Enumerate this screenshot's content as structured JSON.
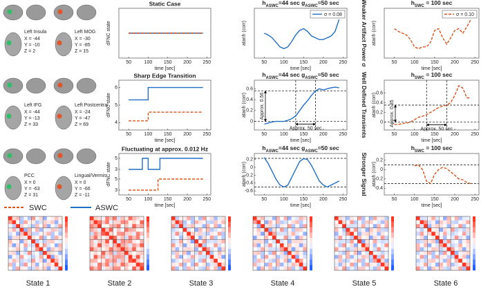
{
  "brain_regions": [
    {
      "name": "Left Insula",
      "coords": [
        "X = -44",
        "Y = -10",
        "Z =   2"
      ]
    },
    {
      "name": "Left MOG",
      "coords": [
        "X = -30",
        "Y = -85",
        "Z = 15"
      ]
    },
    {
      "name": "Left IFG",
      "coords": [
        "X = -44",
        "Y = -13",
        "Z = 33"
      ]
    },
    {
      "name": "Left Postcentral",
      "coords": [
        "X = -24",
        "Y = -47",
        "Z = 69"
      ]
    },
    {
      "name": "PCC",
      "coords": [
        "X = 0",
        "Y = -63",
        "Z = 31"
      ]
    },
    {
      "name": "Lingual/Vermis",
      "coords": [
        "X = 0",
        "Y = -66",
        "Z = -11"
      ]
    }
  ],
  "row_labels": [
    "Weaker Artifact Power σ",
    "Well Defined Transients",
    "Stronger Signal"
  ],
  "legend": [
    {
      "name": "SWC",
      "color": "#d95319",
      "dash": "dashed"
    },
    {
      "name": "ASWC",
      "color": "#1f6ec4",
      "dash": "solid"
    }
  ],
  "states": [
    "State 1",
    "State 2",
    "State 3",
    "State 4",
    "State 5",
    "State 6"
  ],
  "chart_data": [
    {
      "type": "line",
      "title": "Static Case",
      "xlabel": "time [sec]",
      "ylabel": "dFNC state",
      "xlim": [
        25,
        260
      ],
      "xticks": [
        50,
        100,
        150,
        200,
        250
      ],
      "ylim": [
        1,
        3
      ],
      "series": [
        {
          "color": "#1f6ec4",
          "dash": "solid",
          "x": [
            50,
            240
          ],
          "values": [
            2,
            2
          ]
        },
        {
          "color": "#d95319",
          "dash": "dashed",
          "x": [
            50,
            240
          ],
          "values": [
            2,
            2
          ]
        }
      ]
    },
    {
      "type": "line",
      "title_parts": [
        {
          "text": "h"
        },
        {
          "text": "ASWC",
          "sub": true
        },
        {
          "text": "=44 sec  g"
        },
        {
          "text": "ASWC",
          "sub": true
        },
        {
          "text": "=50 sec"
        }
      ],
      "xlabel": "time [sec]",
      "ylabel": "atanh (corr)",
      "xlim": [
        25,
        260
      ],
      "xticks": [
        50,
        100,
        150,
        200,
        250
      ],
      "ylim": [
        0.7,
        1.2
      ],
      "legend": "upper right",
      "series": [
        {
          "name": "σ = 0.08",
          "color": "#1f6ec4",
          "dash": "solid",
          "x": [
            50,
            60,
            70,
            80,
            90,
            100,
            110,
            120,
            130,
            140,
            150,
            160,
            170,
            180,
            190,
            200,
            210,
            220,
            230,
            240
          ],
          "values": [
            0.95,
            0.93,
            0.9,
            0.85,
            0.8,
            0.78,
            0.8,
            0.86,
            0.93,
            0.98,
            1.0,
            0.97,
            0.92,
            0.9,
            0.88,
            0.88,
            0.9,
            0.92,
            0.97,
            1.1
          ]
        }
      ]
    },
    {
      "type": "line",
      "title_parts": [
        {
          "text": "h"
        },
        {
          "text": "SWC",
          "sub": true
        },
        {
          "text": " = 100 sec"
        }
      ],
      "xlabel": "time [sec]",
      "ylabel": "atanh (corr)",
      "xlim": [
        25,
        260
      ],
      "xticks": [
        50,
        100,
        150,
        200,
        250
      ],
      "ylim": [
        0.7,
        1.2
      ],
      "legend": "upper right",
      "series": [
        {
          "name": "σ = 0.10",
          "color": "#d95319",
          "dash": "dashed",
          "x": [
            50,
            60,
            70,
            80,
            90,
            100,
            110,
            120,
            130,
            140,
            150,
            160,
            170,
            180,
            190,
            200,
            210,
            220,
            230,
            240
          ],
          "values": [
            1.0,
            0.97,
            0.95,
            0.93,
            0.88,
            0.8,
            0.78,
            0.8,
            0.8,
            0.85,
            0.98,
            1.0,
            0.9,
            0.83,
            0.9,
            0.98,
            1.0,
            0.95,
            1.02,
            1.1
          ]
        }
      ]
    },
    {
      "type": "line",
      "title": "Sharp Edge Transition",
      "xlabel": "time [sec]",
      "ylabel": "dFNC state",
      "xlim": [
        25,
        260
      ],
      "xticks": [
        50,
        100,
        150,
        200,
        250
      ],
      "ylim": [
        3.7,
        6.3
      ],
      "yticks": [
        4,
        5,
        6
      ],
      "series": [
        {
          "color": "#1f6ec4",
          "dash": "solid",
          "x": [
            50,
            100,
            100,
            240
          ],
          "values": [
            5.3,
            5.3,
            6,
            6
          ]
        },
        {
          "color": "#d95319",
          "dash": "dashed",
          "x": [
            50,
            100,
            100,
            240
          ],
          "values": [
            4.1,
            4.1,
            4.6,
            4.6
          ]
        }
      ]
    },
    {
      "type": "line",
      "title_parts": [
        {
          "text": "h"
        },
        {
          "text": "ASWC",
          "sub": true
        },
        {
          "text": "=44 sec  g"
        },
        {
          "text": "ASWC",
          "sub": true
        },
        {
          "text": "=50 sec"
        }
      ],
      "xlabel": "time [sec]",
      "ylabel": "atanh (corr)",
      "xlim": [
        25,
        260
      ],
      "xticks": [
        50,
        100,
        150,
        200,
        250
      ],
      "ylim": [
        -0.12,
        0.72
      ],
      "yticks": [
        0,
        0.2,
        0.4,
        0.6
      ],
      "guides": {
        "x": [
          130,
          180
        ],
        "y": [
          0,
          0.56
        ]
      },
      "annotations": [
        {
          "text": "Approx. 0.56",
          "orient": "vertical"
        },
        {
          "text": "Approx. 50 sec",
          "orient": "horizontal"
        }
      ],
      "series": [
        {
          "color": "#1f6ec4",
          "dash": "solid",
          "x": [
            50,
            60,
            70,
            80,
            90,
            100,
            110,
            120,
            130,
            140,
            150,
            160,
            170,
            180,
            190,
            200,
            210,
            220,
            230,
            240
          ],
          "values": [
            -0.05,
            -0.03,
            -0.01,
            0.0,
            0.0,
            0.0,
            0.02,
            0.05,
            0.1,
            0.2,
            0.3,
            0.38,
            0.48,
            0.56,
            0.6,
            0.58,
            0.6,
            0.62,
            0.63,
            0.62
          ]
        }
      ]
    },
    {
      "type": "line",
      "title_parts": [
        {
          "text": "h"
        },
        {
          "text": "SWC",
          "sub": true
        },
        {
          "text": " = 100 sec"
        }
      ],
      "xlabel": "time [sec]",
      "ylabel": "atanh (corr)",
      "xlim": [
        25,
        260
      ],
      "xticks": [
        50,
        100,
        150,
        200,
        250
      ],
      "ylim": [
        -0.12,
        0.82
      ],
      "yticks": [
        0,
        0.2,
        0.4,
        0.6
      ],
      "guides": {
        "x": [
          130,
          180
        ],
        "y": [
          0,
          0.35
        ]
      },
      "annotations": [
        {
          "text": "Approx. 0.35",
          "orient": "vertical"
        },
        {
          "text": "Approx. 50 sec",
          "orient": "horizontal"
        }
      ],
      "series": [
        {
          "color": "#d95319",
          "dash": "dashed",
          "x": [
            50,
            60,
            70,
            80,
            90,
            100,
            110,
            120,
            130,
            140,
            150,
            160,
            170,
            180,
            190,
            200,
            210,
            220,
            230,
            240
          ],
          "values": [
            -0.05,
            -0.05,
            -0.03,
            -0.02,
            0.0,
            0.05,
            0.1,
            0.12,
            0.15,
            0.2,
            0.25,
            0.3,
            0.33,
            0.35,
            0.4,
            0.55,
            0.75,
            0.7,
            0.5,
            0.5
          ]
        }
      ]
    },
    {
      "type": "line",
      "title": "Fluctuating at approx. 0.012 Hz",
      "xlabel": "time [sec]",
      "ylabel": "dFNC state",
      "xlim": [
        25,
        260
      ],
      "xticks": [
        50,
        100,
        150,
        200,
        250
      ],
      "panels": [
        {
          "ylim": [
            2.5,
            5.5
          ],
          "yticks": [
            3,
            5
          ],
          "series": [
            {
              "color": "#1f6ec4",
              "dash": "solid",
              "x": [
                50,
                85,
                85,
                100,
                100,
                130,
                130,
                240
              ],
              "values": [
                3,
                3,
                5,
                5,
                3,
                3,
                5,
                5
              ]
            }
          ]
        },
        {
          "ylim": [
            2.5,
            5.5
          ],
          "yticks": [
            3,
            5
          ],
          "series": [
            {
              "color": "#d95319",
              "dash": "dashed",
              "x": [
                50,
                125,
                125,
                240
              ],
              "values": [
                3,
                3,
                5,
                5
              ]
            }
          ]
        }
      ]
    },
    {
      "type": "line",
      "title_parts": [
        {
          "text": "h"
        },
        {
          "text": "ASWC",
          "sub": true
        },
        {
          "text": "=44 sec  g"
        },
        {
          "text": "ASWC",
          "sub": true
        },
        {
          "text": "=50 sec"
        }
      ],
      "xlabel": "time [sec]",
      "ylabel": "atanh (corr)",
      "xlim": [
        25,
        260
      ],
      "xticks": [
        50,
        100,
        150,
        200,
        250
      ],
      "ylim": [
        -0.65,
        0.3
      ],
      "yticks": [
        -0.6,
        -0.4,
        -0.2,
        0,
        0.2
      ],
      "guides": {
        "y": [
          0.23,
          -0.5
        ]
      },
      "series": [
        {
          "color": "#1f6ec4",
          "dash": "solid",
          "x": [
            50,
            60,
            70,
            80,
            90,
            100,
            110,
            120,
            130,
            140,
            150,
            160,
            170,
            180,
            190,
            200,
            210,
            220,
            230,
            240
          ],
          "values": [
            0.25,
            0.1,
            -0.1,
            -0.3,
            -0.45,
            -0.5,
            -0.45,
            -0.25,
            -0.05,
            0.15,
            0.22,
            0.2,
            0.05,
            -0.15,
            -0.35,
            -0.45,
            -0.5,
            -0.45,
            -0.4,
            -0.35
          ]
        }
      ]
    },
    {
      "type": "line",
      "title_parts": [
        {
          "text": "h"
        },
        {
          "text": "SWC",
          "sub": true
        },
        {
          "text": " = 100 sec"
        }
      ],
      "xlabel": "time [sec]",
      "ylabel": "atanh (corr)",
      "xlim": [
        25,
        260
      ],
      "xticks": [
        50,
        100,
        150,
        200,
        250
      ],
      "ylim": [
        -0.5,
        0.3
      ],
      "yticks": [
        -0.4,
        -0.2,
        0,
        0.2
      ],
      "guides": {
        "y": [
          0.1,
          -0.3
        ]
      },
      "series": [
        {
          "color": "#d95319",
          "dash": "dashed",
          "x": [
            100,
            110,
            120,
            130,
            140,
            150,
            160,
            170,
            180,
            190,
            200,
            210,
            220,
            230,
            240
          ],
          "values": [
            0.08,
            0.1,
            0.0,
            -0.25,
            -0.3,
            -0.1,
            0.0,
            0.05,
            0.02,
            -0.05,
            -0.12,
            -0.2,
            -0.22,
            -0.28,
            -0.3
          ]
        }
      ]
    }
  ]
}
